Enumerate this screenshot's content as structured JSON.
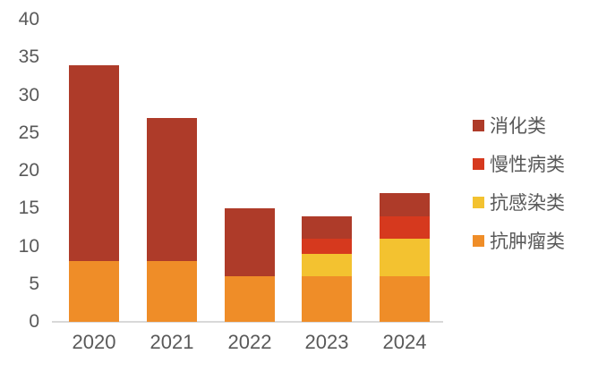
{
  "chart_data": {
    "type": "bar",
    "stacked": true,
    "title": "",
    "xlabel": "",
    "ylabel": "",
    "categories": [
      "2020",
      "2021",
      "2022",
      "2023",
      "2024"
    ],
    "series": [
      {
        "name": "抗肿瘤类",
        "color": "#EF8D28",
        "values": [
          8,
          8,
          6,
          6,
          6
        ]
      },
      {
        "name": "抗感染类",
        "color": "#F3C230",
        "values": [
          0,
          0,
          0,
          3,
          5
        ]
      },
      {
        "name": "慢性病类",
        "color": "#D6391E",
        "values": [
          0,
          0,
          0,
          2,
          3
        ]
      },
      {
        "name": "消化类",
        "color": "#AE3B29",
        "values": [
          26,
          19,
          9,
          3,
          3
        ]
      }
    ],
    "ylim": [
      0,
      40
    ],
    "ytick_step": 5,
    "yticks": [
      "0",
      "5",
      "10",
      "15",
      "20",
      "25",
      "30",
      "35",
      "40"
    ],
    "grid": false,
    "legend_position": "right",
    "legend": [
      {
        "label": "消化类",
        "color": "#AE3B29"
      },
      {
        "label": "慢性病类",
        "color": "#D6391E"
      },
      {
        "label": "抗感染类",
        "color": "#F3C230"
      },
      {
        "label": "抗肿瘤类",
        "color": "#EF8D28"
      }
    ],
    "axis_color": "#D9D9D9",
    "text_color": "#595959",
    "background_color": "#FFFFFF"
  }
}
